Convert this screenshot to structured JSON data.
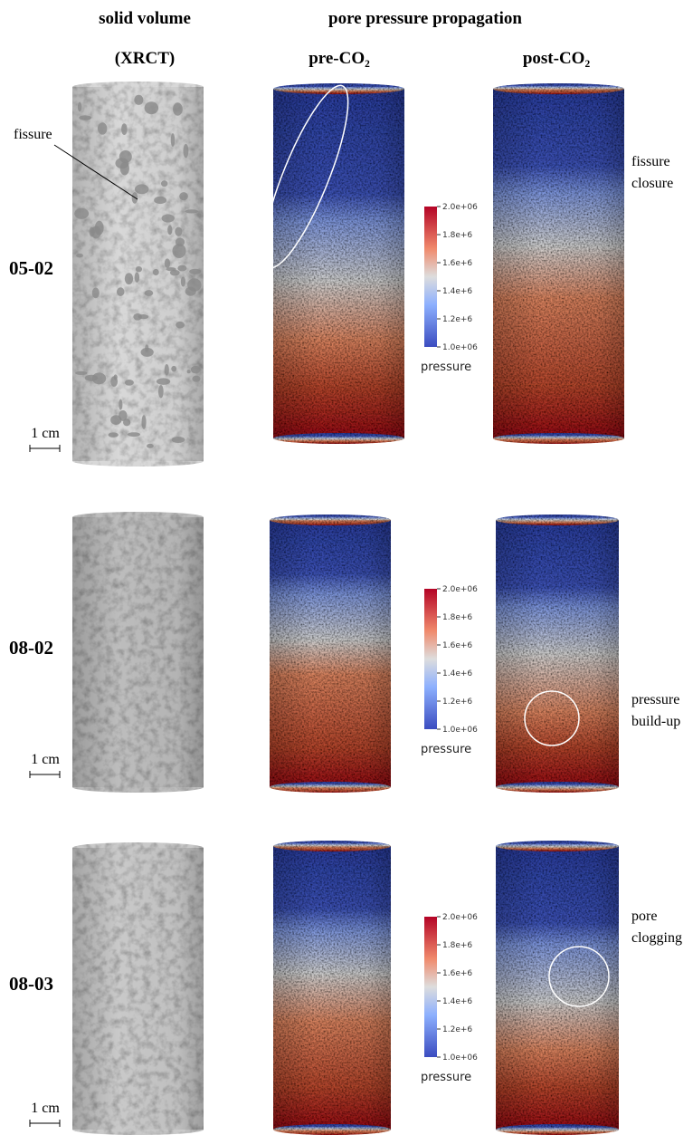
{
  "headers": {
    "solid_volume": "solid volume",
    "pore_pressure": "pore pressure propagation",
    "xrct": "(XRCT)",
    "pre": "pre-CO₂",
    "post": "post-CO₂"
  },
  "rows": [
    {
      "label": "05-02",
      "scale": "1 cm",
      "colorbar": {
        "ticks": [
          "2.0e+06",
          "1.8e+6",
          "1.6e+6",
          "1.4e+6",
          "1.2e+6",
          "1.0e+06"
        ],
        "title": "pressure"
      },
      "annotations": {
        "xrct": "fissure",
        "post": [
          "fissure",
          "closure"
        ]
      }
    },
    {
      "label": "08-02",
      "scale": "1 cm",
      "colorbar": {
        "ticks": [
          "2.0e+06",
          "1.8e+6",
          "1.6e+6",
          "1.4e+6",
          "1.2e+6",
          "1.0e+06"
        ],
        "title": "pressure"
      },
      "annotations": {
        "post": [
          "pressure",
          "build-up"
        ]
      }
    },
    {
      "label": "08-03",
      "scale": "1 cm",
      "colorbar": {
        "ticks": [
          "2.0e+06",
          "1.8e+6",
          "1.6e+6",
          "1.4e+6",
          "1.2e+6",
          "1.0e+06"
        ],
        "title": "pressure"
      },
      "annotations": {
        "post": [
          "pore",
          "clogging"
        ]
      }
    }
  ]
}
